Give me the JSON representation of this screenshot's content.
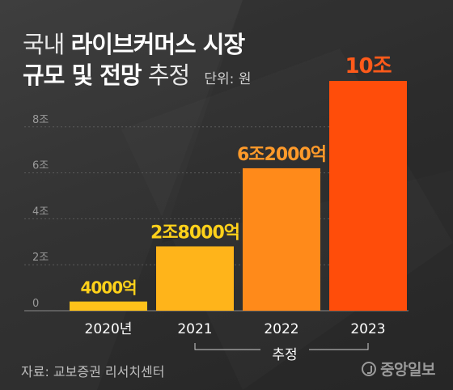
{
  "title": {
    "line1_light": "국내",
    "line1_bold": "라이브커머스 시장",
    "line2_bold": "규모 및 전망",
    "line2_light": "추정",
    "unit": "단위: 원"
  },
  "source": "자료: 교보증권 리서치센터",
  "logo": "중앙일보",
  "bracket_label": "추정",
  "colors": {
    "background": "#2f2f2f",
    "bar_2020": "#ffc21a",
    "bar_2021": "#ffb41a",
    "bar_2022": "#ff8a1a",
    "bar_2023": "#ff4d0a",
    "label_yellow": "#ffd11a",
    "label_orange": "#ff9a2a",
    "label_red": "#ff5a1a"
  },
  "chart_data": {
    "type": "bar",
    "categories": [
      "2020년",
      "2021",
      "2022",
      "2023"
    ],
    "values": [
      4000,
      28000,
      62000,
      100000
    ],
    "value_unit": "억원",
    "data_labels": [
      "4000억",
      "2조8000억",
      "6조2000억",
      "10조"
    ],
    "ylim": [
      0,
      100000
    ],
    "y_ticks": [
      0,
      20000,
      40000,
      60000,
      80000
    ],
    "y_tick_labels": [
      "0",
      "2조",
      "4조",
      "6조",
      "8조"
    ],
    "grid": true,
    "estimated_categories": [
      "2021",
      "2022",
      "2023"
    ]
  }
}
